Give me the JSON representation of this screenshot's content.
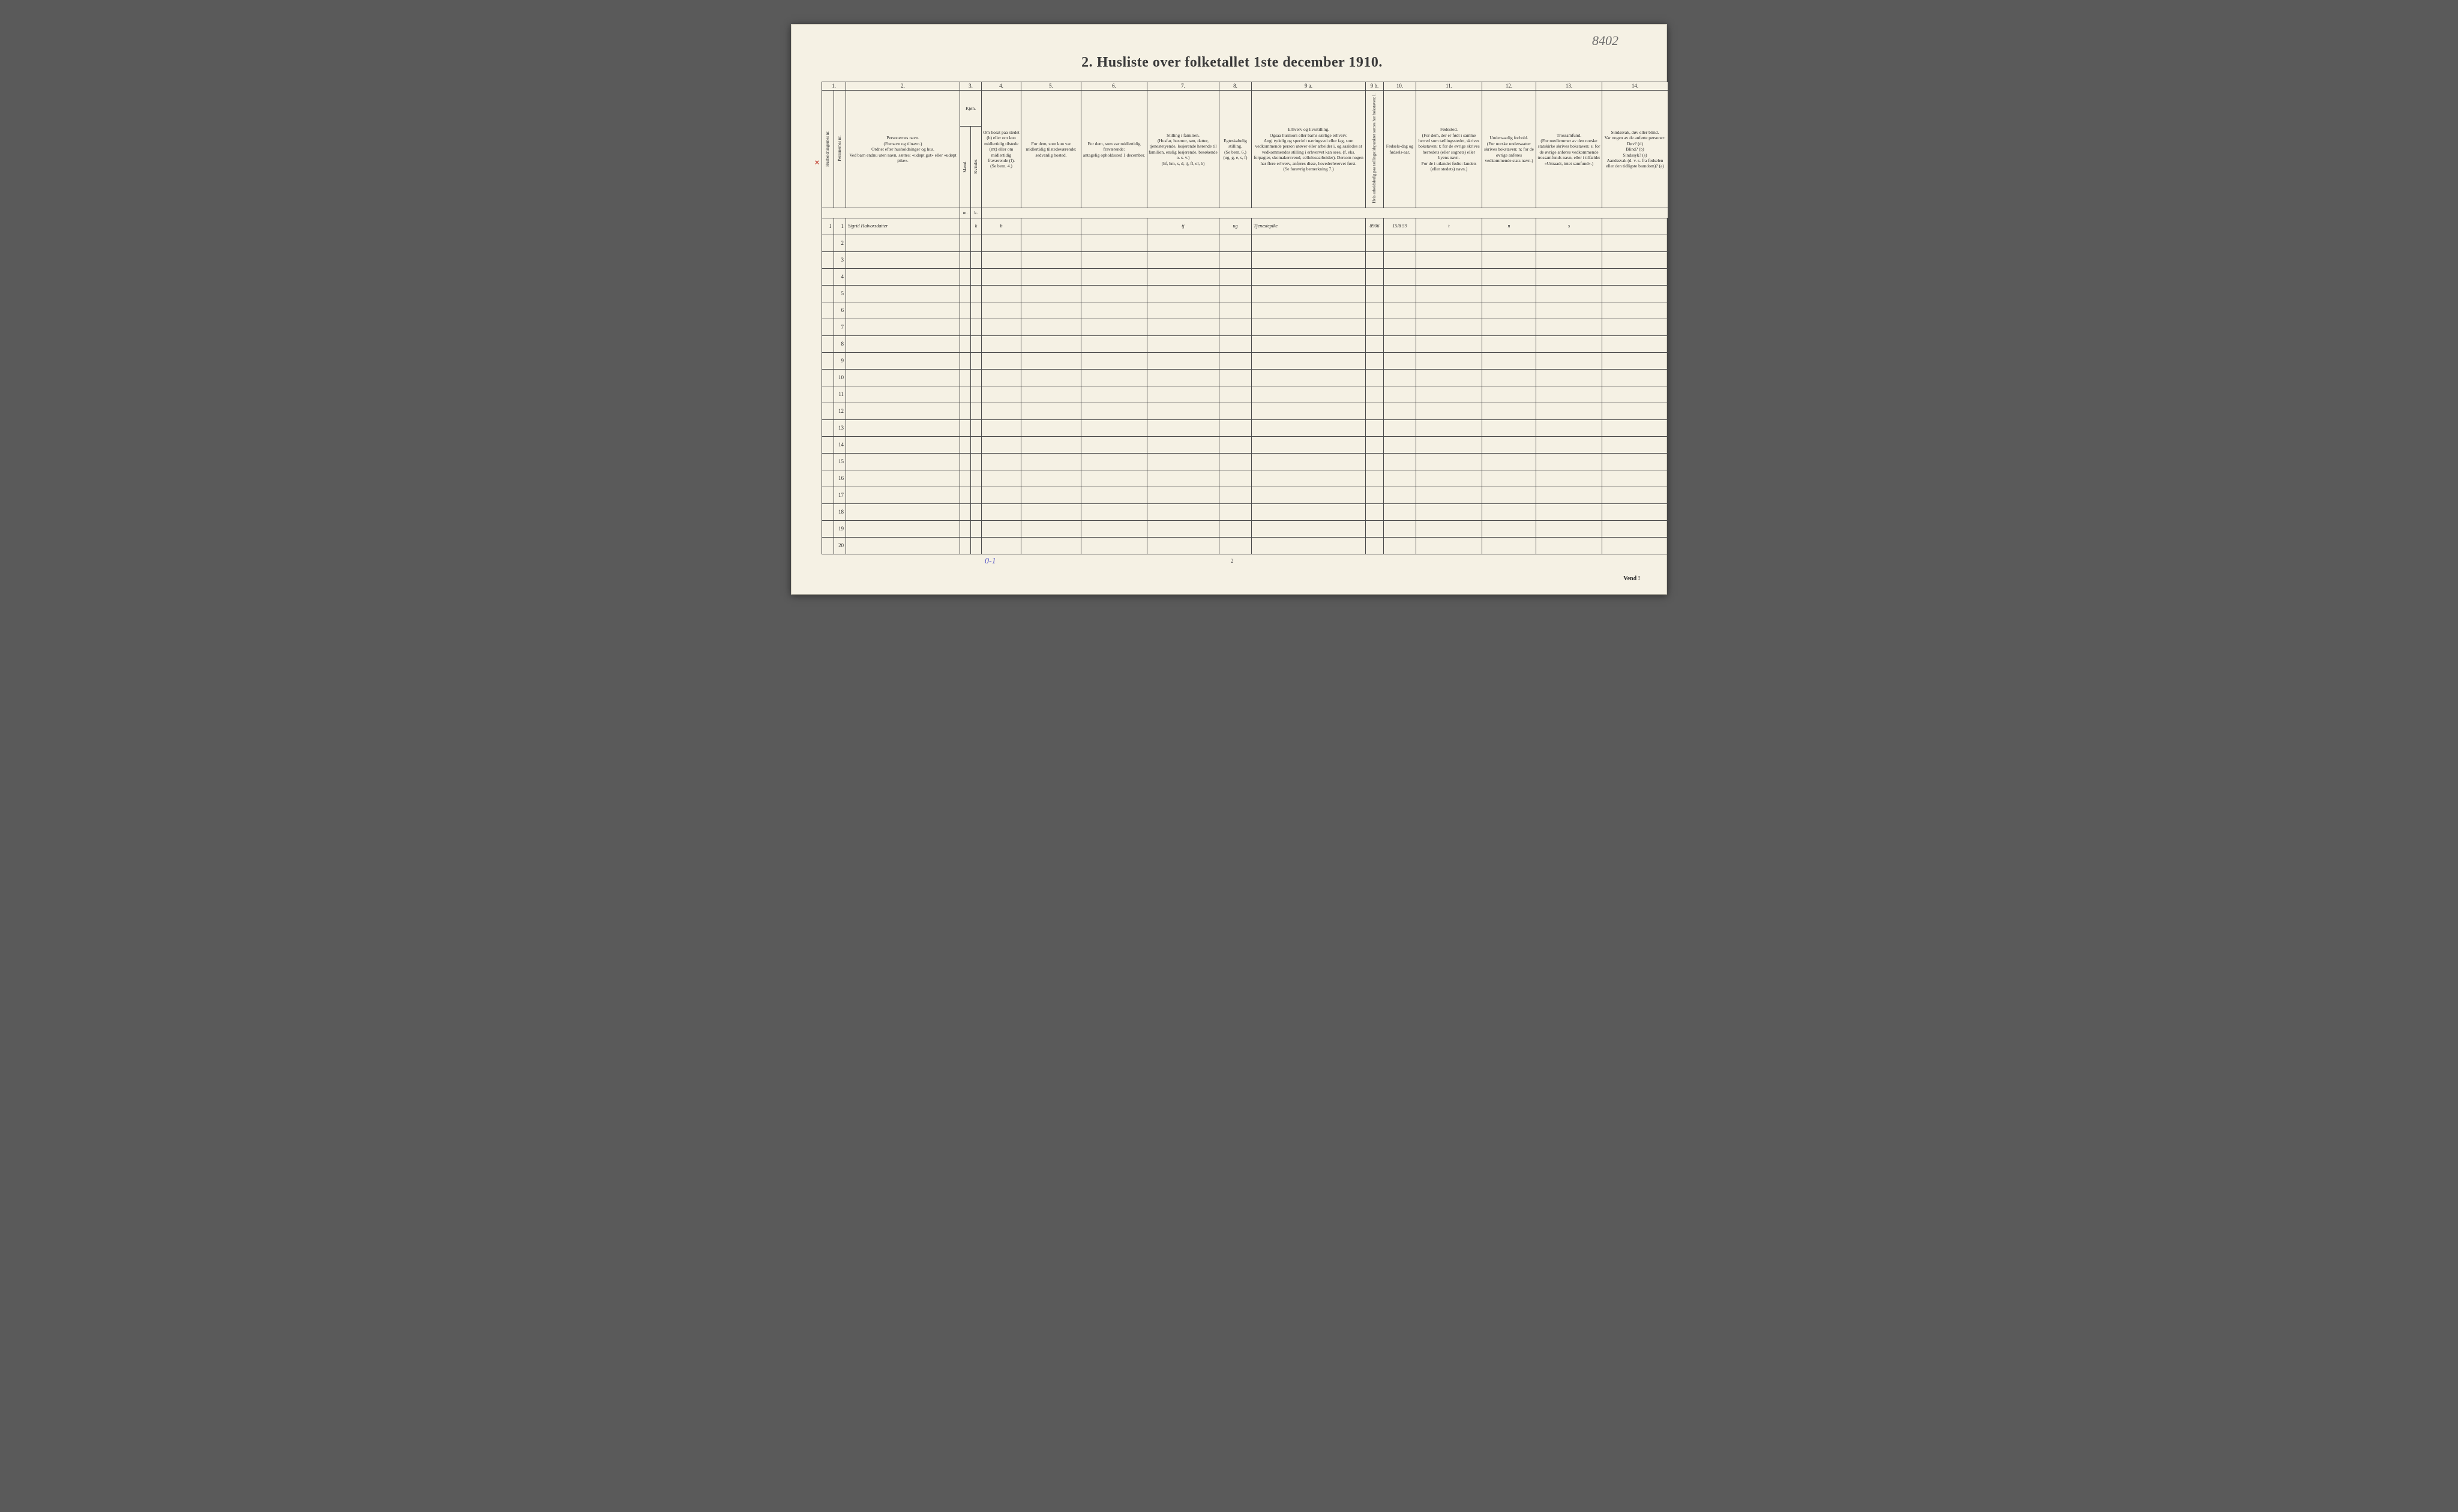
{
  "page": {
    "background": "#f5f1e4",
    "ink": "#2a2a2a",
    "handwriting_color": "#555555",
    "red_mark_color": "#c0392b",
    "blue_note_color": "#5a5ac8",
    "border_color": "#4a4a4a"
  },
  "handwritten_corner": "8402",
  "title": "2.  Husliste over folketallet 1ste december 1910.",
  "column_numbers": [
    "1.",
    "2.",
    "3.",
    "4.",
    "5.",
    "6.",
    "7.",
    "8.",
    "9 a.",
    "9 b.",
    "10.",
    "11.",
    "12.",
    "13.",
    "14."
  ],
  "headers": {
    "col1a": "Husholdningernes nr.",
    "col1b": "Personernes nr.",
    "col2": "Personernes navn.\n(Fornavn og tilnavn.)\nOrdnet efter husholdninger og hus.\nVed barn endnu uten navn, sættes: «udøpt gut» eller «udøpt pike».",
    "col3_group": "Kjøn.",
    "col3a": "Mænd.",
    "col3b": "Kvinder.",
    "col4": "Om bosat paa stedet (b) eller om kun midlertidig tilstede (mt) eller om midlertidig fraværende (f).\n(Se bem. 4.)",
    "col5": "For dem, som kun var midlertidig tilstedeværende:\nsedvanlig bosted.",
    "col6": "For dem, som var midlertidig fraværende:\nantagelig opholdssted 1 december.",
    "col7": "Stilling i familien.\n(Husfar, husmor, søn, datter, tjenestetyende, losjerende hørende til familien, enslig losjerende, besøkende o. s. v.)\n(hf, hm, s, d, tj, fl, el, b)",
    "col8": "Egteskabelig stilling.\n(Se bem. 6.)\n(ug, g, e, s, f)",
    "col9a": "Erhverv og livsstilling.\nOgsaa husmors eller barns særlige erhverv.\nAngi tydelig og specielt næringsvei eller fag, som vedkommende person utøver eller arbeider i, og saaledes at vedkommendes stilling i erhvervet kan sees, (f. eks. forpagter, skomakersvend, cellulosearbeider). Dersom nogen har flere erhverv, anføres disse, hovederhvervet først.\n(Se forøvrig bemerkning 7.)",
    "col9b": "Hvis arbeidsledig paa tællingstidspunktet sættes her bokstaven: l.",
    "col10": "Fødsels-dag og fødsels-aar.",
    "col11": "Fødested.\n(For dem, der er født i samme herred som tællingsstedet, skrives bokstaven: t; for de øvrige skrives herredets (eller sognets) eller byens navn.\nFor de i utlandet fødte: landets (eller stedets) navn.)",
    "col12": "Undersaatlig forhold.\n(For norske undersaatter skrives bokstaven: n; for de øvrige anføres vedkommende stats navn.)",
    "col13": "Trossamfund.\n(For medlemmer av den norske statskirke skrives bokstaven: s; for de øvrige anføres vedkommende trossamfunds navn, eller i tilfælde: «Uttraadt, intet samfund».)",
    "col14": "Sindssvak, døv eller blind.\nVar nogen av de anførte personer:\nDøv? (d)\nBlind? (b)\nSindssyk? (s)\nAandssvak (d. v. s. fra fødselen eller den tidligste barndom)? (a)"
  },
  "rows": [
    {
      "num1": "1",
      "num2": "1",
      "name": "Sigrid Halvorsdatter",
      "m": "",
      "k": "k",
      "residence": "b",
      "col5": "",
      "col6": "",
      "family_pos": "tj",
      "marital": "ug",
      "occupation": "Tjenestepike",
      "col9b": "8906",
      "birth": "15/8 59",
      "birthplace": "t",
      "nationality": "n",
      "religion": "s",
      "disability": ""
    }
  ],
  "blank_row_numbers": [
    "2",
    "3",
    "4",
    "5",
    "6",
    "7",
    "8",
    "9",
    "10",
    "11",
    "12",
    "13",
    "14",
    "15",
    "16",
    "17",
    "18",
    "19",
    "20"
  ],
  "footer_blue_note": "0-1",
  "bottom_page_num": "2",
  "vend_label": "Vend !",
  "red_mark": "×"
}
